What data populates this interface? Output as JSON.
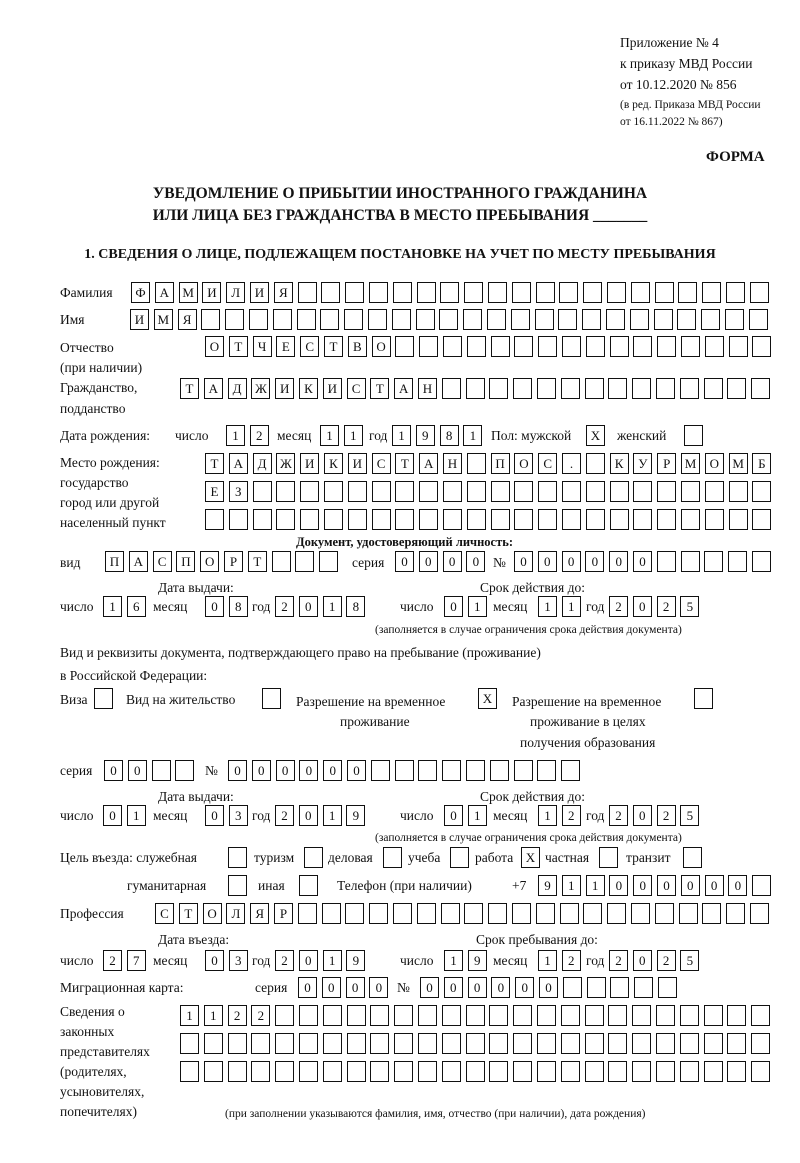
{
  "header": {
    "appendix": "Приложение № 4",
    "order": "к приказу МВД России",
    "order_date": "от 10.12.2020 № 856",
    "revision1": "(в ред. Приказа МВД России",
    "revision2": "от 16.11.2022 № 867)",
    "form_label": "ФОРМА",
    "title1": "УВЕДОМЛЕНИЕ О ПРИБЫТИИ ИНОСТРАННОГО ГРАЖДАНИНА",
    "title2": "ИЛИ ЛИЦА БЕЗ ГРАЖДАНСТВА В МЕСТО ПРЕБЫВАНИЯ _______",
    "section1": "1. СВЕДЕНИЯ О ЛИЦЕ, ПОДЛЕЖАЩЕМ ПОСТАНОВКЕ НА УЧЕТ ПО МЕСТУ ПРЕБЫВАНИЯ"
  },
  "labels": {
    "surname": "Фамилия",
    "name": "Имя",
    "patronymic1": "Отчество",
    "patronymic2": "(при наличии)",
    "citizenship1": "Гражданство,",
    "citizenship2": "подданство",
    "birth_date": "Дата рождения:",
    "day": "число",
    "month": "месяц",
    "year": "год",
    "sex_male": "Пол: мужской",
    "sex_female": "женский",
    "birthplace1": "Место рождения:",
    "birthplace2": "государство",
    "birthplace3": "город или другой",
    "birthplace4": "населенный пункт",
    "id_doc": "Документ, удостоверяющий личность:",
    "kind": "вид",
    "series": "серия",
    "number": "№",
    "issue_date": "Дата выдачи:",
    "valid_until": "Срок действия до:",
    "validity_note": "(заполняется в случае ограничения срока действия документа)",
    "right_doc1": "Вид и реквизиты документа, подтверждающего право на пребывание (проживание)",
    "right_doc2": "в Российской Федерации:",
    "visa": "Виза",
    "residence": "Вид на жительство",
    "temp_res1": "Разрешение на временное",
    "temp_res2": "проживание",
    "temp_edu1": "Разрешение на временное",
    "temp_edu2": "проживание в целях",
    "temp_edu3": "получения образования",
    "purpose": "Цель въезда: служебная",
    "tourism": "туризм",
    "business": "деловая",
    "study": "учеба",
    "work": "работа",
    "private": "частная",
    "transit": "транзит",
    "humanitarian": "гуманитарная",
    "other": "иная",
    "phone": "Телефон (при наличии)",
    "phone_prefix": "+7",
    "profession": "Профессия",
    "entry_date": "Дата въезда:",
    "stay_until": "Срок пребывания до:",
    "migration_card": "Миграционная карта:",
    "reps1": "Сведения о",
    "reps2": "законных",
    "reps3": "представителях",
    "reps4": "(родителях,",
    "reps5": "усыновителях,",
    "reps6": "попечителях)",
    "reps_note": "(при заполнении указываются фамилия, имя, отчество (при наличии), дата рождения)"
  },
  "person": {
    "surname": "ФАМИЛИЯ",
    "name": "ИМЯ",
    "patronymic": "ОТЧЕСТВО",
    "citizenship": "ТАДЖИКИСТАН",
    "birth_day": "12",
    "birth_month": "11",
    "birth_year": "1981",
    "sex_male": "X",
    "sex_female": "",
    "birthplace_line1": "ТАДЖИКИСТАН ПОС. КУРМОМБ",
    "birthplace_line2": "ЕЗ",
    "birthplace_line3": "",
    "id_kind": "ПАСПОРТ",
    "id_series": "0000",
    "id_number": "000000",
    "id_issue_day": "16",
    "id_issue_month": "08",
    "id_issue_year": "2018",
    "id_valid_day": "01",
    "id_valid_month": "11",
    "id_valid_year": "2025"
  },
  "right_doc": {
    "visa": "",
    "residence": "",
    "temp_res": "X",
    "temp_edu": "",
    "series": "00",
    "number": "000000",
    "issue_day": "01",
    "issue_month": "03",
    "issue_year": "2019",
    "valid_day": "01",
    "valid_month": "12",
    "valid_year": "2025"
  },
  "purpose": {
    "official": "",
    "tourism": "",
    "business": "",
    "study": "",
    "work": "X",
    "private": "",
    "transit": "",
    "humanitarian": "",
    "other": ""
  },
  "phone": "911000000",
  "profession": "СТОЛЯР",
  "entry": {
    "day": "27",
    "month": "03",
    "year": "2019",
    "stay_day": "19",
    "stay_month": "12",
    "stay_year": "2025"
  },
  "migration_card": {
    "series": "0000",
    "number": "000000"
  },
  "representatives": {
    "line1": "1122",
    "line2": "",
    "line3": ""
  }
}
